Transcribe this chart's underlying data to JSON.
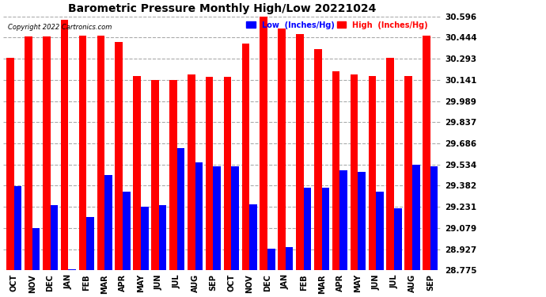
{
  "title": "Barometric Pressure Monthly High/Low 20221024",
  "copyright": "Copyright 2022 Cartronics.com",
  "legend_low_label": "Low  (Inches/Hg)",
  "legend_high_label": "High  (Inches/Hg)",
  "months": [
    "OCT",
    "NOV",
    "DEC",
    "JAN",
    "FEB",
    "MAR",
    "APR",
    "MAY",
    "JUN",
    "JUL",
    "AUG",
    "SEP",
    "OCT",
    "NOV",
    "DEC",
    "JAN",
    "FEB",
    "MAR",
    "APR",
    "MAY",
    "JUN",
    "JUL",
    "AUG",
    "SEP"
  ],
  "high_values": [
    30.3,
    30.45,
    30.45,
    30.57,
    30.46,
    30.46,
    30.41,
    30.17,
    30.14,
    30.14,
    30.18,
    30.16,
    30.16,
    30.4,
    30.6,
    30.51,
    30.47,
    30.36,
    30.2,
    30.18,
    30.17,
    30.3,
    30.17,
    30.46
  ],
  "low_values": [
    29.38,
    29.08,
    29.24,
    28.78,
    29.16,
    29.46,
    29.34,
    29.23,
    29.24,
    29.65,
    29.55,
    29.52,
    29.52,
    29.25,
    28.93,
    28.94,
    29.37,
    29.37,
    29.49,
    29.48,
    29.34,
    29.22,
    29.53,
    29.52
  ],
  "high_color": "#ff0000",
  "low_color": "#0000ff",
  "bg_color": "#ffffff",
  "grid_color": "#aaaaaa",
  "yticks": [
    28.775,
    28.927,
    29.079,
    29.231,
    29.382,
    29.534,
    29.686,
    29.837,
    29.989,
    30.141,
    30.293,
    30.444,
    30.596
  ],
  "ymin": 28.775,
  "ymax": 30.596,
  "bar_width": 0.42,
  "figsize": [
    6.9,
    3.75
  ],
  "dpi": 100
}
